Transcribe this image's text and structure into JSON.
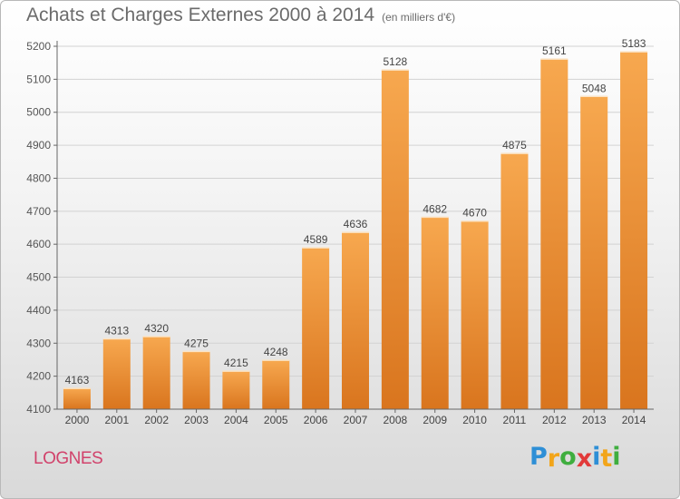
{
  "header": {
    "title": "Achats et Charges Externes 2000 à 2014",
    "subtitle": "(en milliers d'€)"
  },
  "footer": {
    "town": "LOGNES",
    "logo": {
      "letters": [
        "P",
        "r",
        "o",
        "x",
        "i",
        "t",
        "i"
      ],
      "colors": [
        "#2e8fd6",
        "#f2a51a",
        "#3fae3f",
        "#e23a3a",
        "#2e8fd6",
        "#f2a51a",
        "#3fae3f"
      ]
    }
  },
  "chart_data": {
    "type": "bar",
    "categories": [
      "2000",
      "2001",
      "2002",
      "2003",
      "2004",
      "2005",
      "2006",
      "2007",
      "2008",
      "2009",
      "2010",
      "2011",
      "2012",
      "2013",
      "2014"
    ],
    "values": [
      4163,
      4313,
      4320,
      4275,
      4215,
      4248,
      4589,
      4636,
      5128,
      4682,
      4670,
      4875,
      5161,
      5048,
      5183
    ],
    "xlabel": "",
    "ylabel": "",
    "ylim": [
      4100,
      5200
    ],
    "yticks": [
      4100,
      4200,
      4300,
      4400,
      4500,
      4600,
      4700,
      4800,
      4900,
      5000,
      5100,
      5200
    ],
    "grid": true,
    "bar_color_top": "#f7a84f",
    "bar_color_bottom": "#d9751e"
  }
}
